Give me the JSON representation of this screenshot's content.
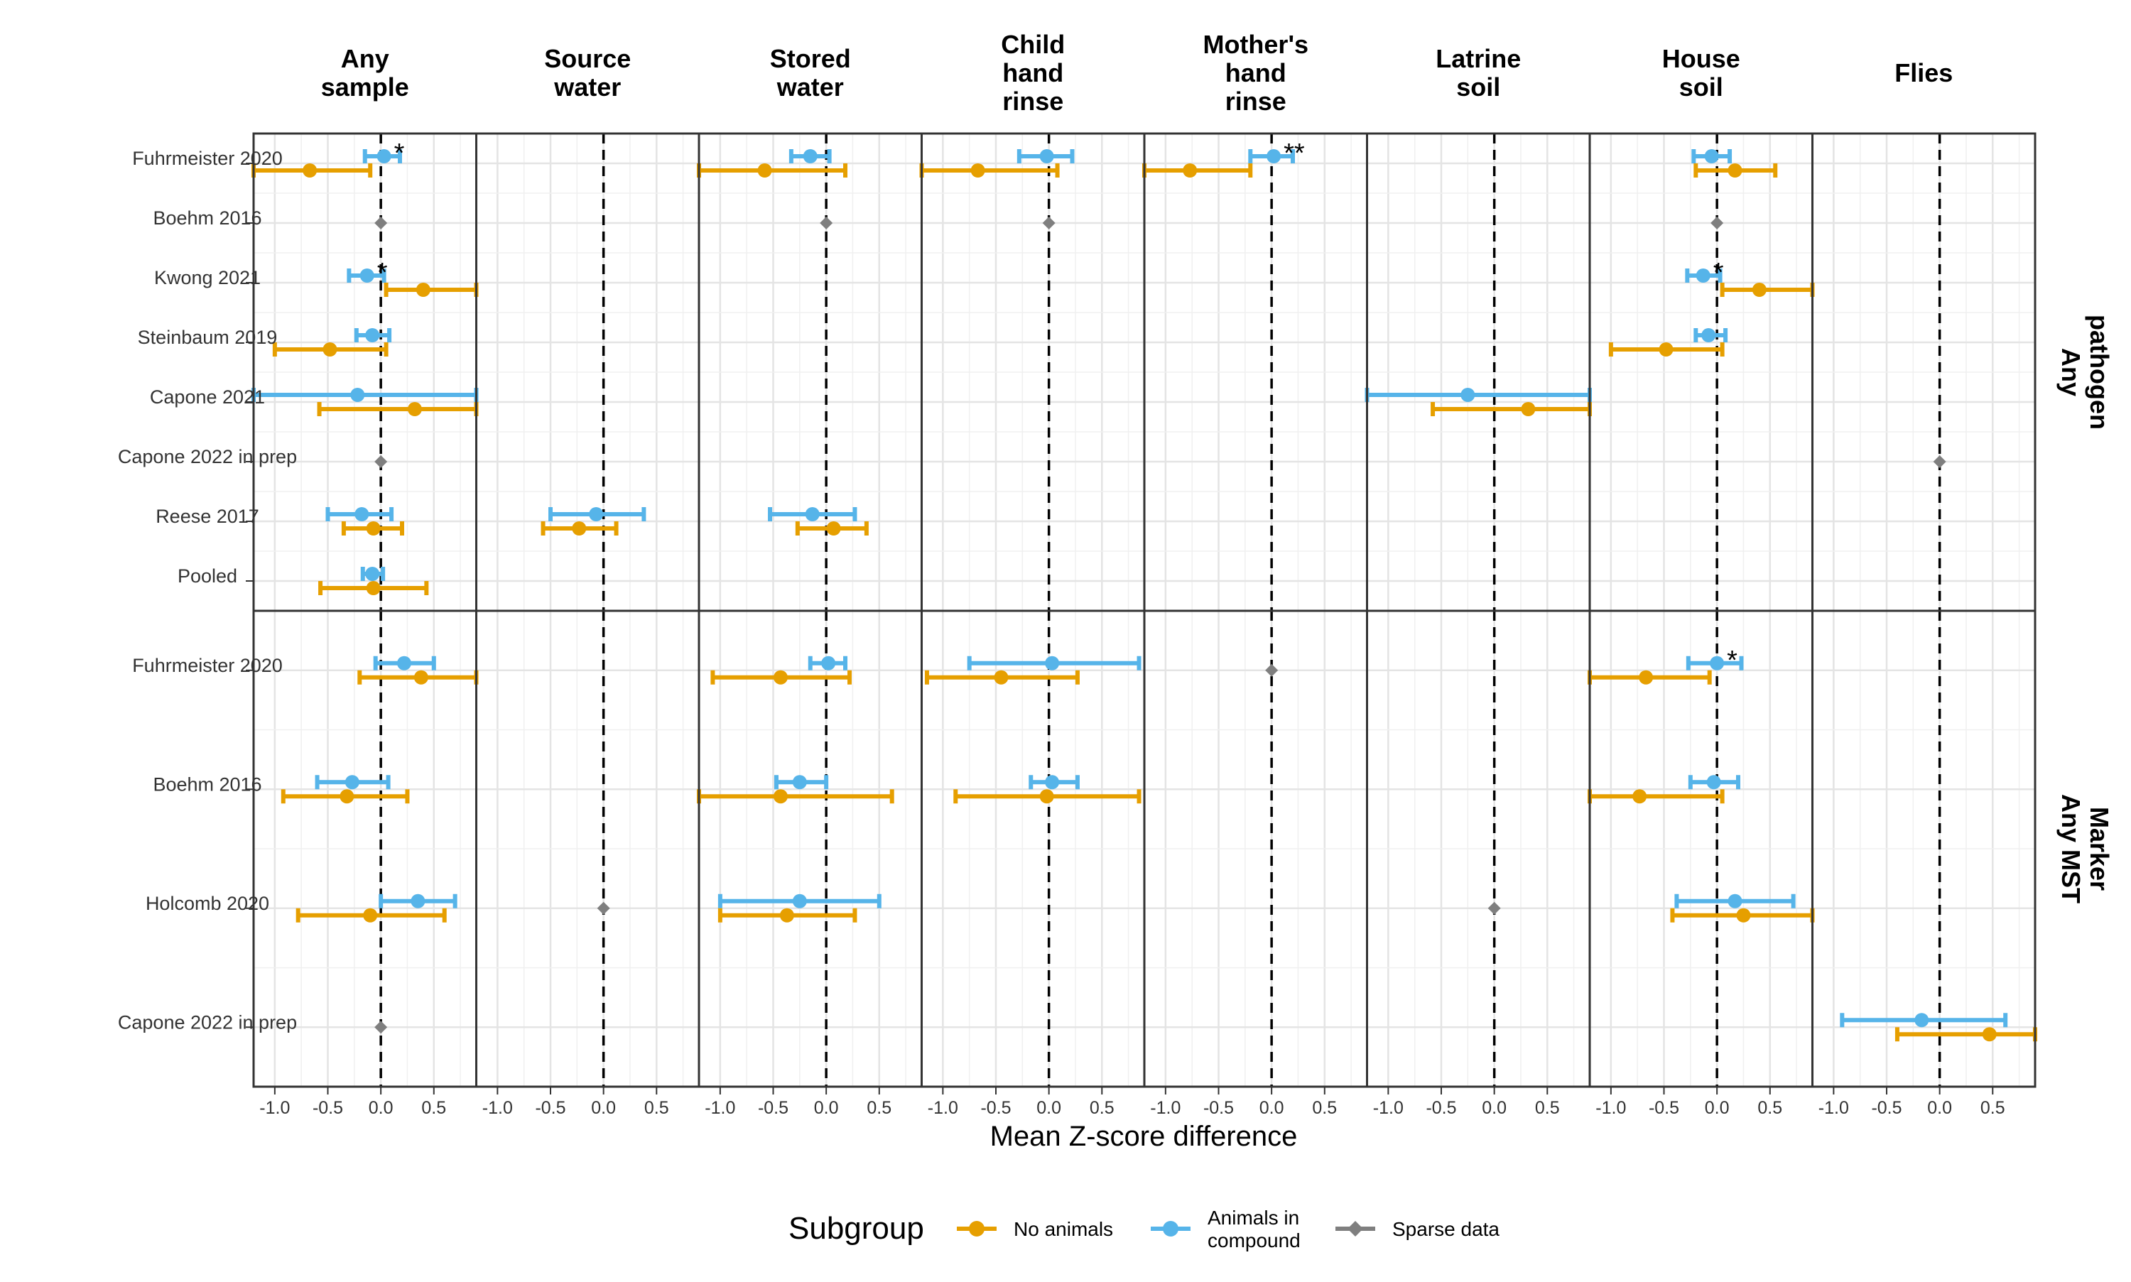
{
  "chart_data": {
    "type": "forest",
    "xlabel": "Mean Z-score difference",
    "xlim": [
      -1.2,
      0.9
    ],
    "xticks": [
      -1.0,
      -0.5,
      0.0,
      0.5
    ],
    "xtick_labels": [
      "-1.0",
      "-0.5",
      "0.0",
      "0.5"
    ],
    "columns": [
      "Any\nsample",
      "Source\nwater",
      "Stored\nwater",
      "Child\nhand\nrinse",
      "Mother's\nhand\nrinse",
      "Latrine\nsoil",
      "House\nsoil",
      "Flies"
    ],
    "row_panels": [
      {
        "label": "Any\npathogen",
        "studies": [
          "Fuhrmeister 2020",
          "Boehm 2016",
          "Kwong 2021",
          "Steinbaum 2019",
          "Capone 2021",
          "Capone 2022 in prep",
          "Reese 2017",
          "Pooled"
        ]
      },
      {
        "label": "Any MST\nMarker",
        "studies": [
          "Fuhrmeister 2020",
          "Boehm 2016",
          "Holcomb 2020",
          "Capone 2022 in prep"
        ]
      }
    ],
    "legend": {
      "title": "Subgroup",
      "placement": "bottom",
      "items": [
        {
          "key": "none",
          "label": "No animals",
          "color": "#E69F00"
        },
        {
          "key": "animals",
          "label": "Animals in\ncompound",
          "color": "#56B4E9"
        },
        {
          "key": "sparse",
          "label": "Sparse data",
          "color": "#7F7F7F"
        }
      ]
    },
    "points": [
      {
        "panel": 0,
        "col": 0,
        "study": 0,
        "group": "animals",
        "est": 0.03,
        "lo": -0.15,
        "hi": 0.18,
        "sig": "*"
      },
      {
        "panel": 0,
        "col": 0,
        "study": 0,
        "group": "none",
        "est": -0.67,
        "lo": -1.2,
        "hi": -0.1
      },
      {
        "panel": 0,
        "col": 0,
        "study": 1,
        "group": "sparse",
        "est": 0.0
      },
      {
        "panel": 0,
        "col": 0,
        "study": 2,
        "group": "animals",
        "est": -0.13,
        "lo": -0.3,
        "hi": 0.03,
        "sig": "*"
      },
      {
        "panel": 0,
        "col": 0,
        "study": 2,
        "group": "none",
        "est": 0.4,
        "lo": 0.05,
        "hi": 0.9
      },
      {
        "panel": 0,
        "col": 0,
        "study": 3,
        "group": "animals",
        "est": -0.08,
        "lo": -0.23,
        "hi": 0.08
      },
      {
        "panel": 0,
        "col": 0,
        "study": 3,
        "group": "none",
        "est": -0.48,
        "lo": -1.0,
        "hi": 0.05
      },
      {
        "panel": 0,
        "col": 0,
        "study": 4,
        "group": "animals",
        "est": -0.22,
        "lo": -1.2,
        "hi": 0.9
      },
      {
        "panel": 0,
        "col": 0,
        "study": 4,
        "group": "none",
        "est": 0.32,
        "lo": -0.58,
        "hi": 0.9
      },
      {
        "panel": 0,
        "col": 0,
        "study": 5,
        "group": "sparse",
        "est": 0.0
      },
      {
        "panel": 0,
        "col": 0,
        "study": 6,
        "group": "animals",
        "est": -0.18,
        "lo": -0.5,
        "hi": 0.1
      },
      {
        "panel": 0,
        "col": 0,
        "study": 6,
        "group": "none",
        "est": -0.07,
        "lo": -0.35,
        "hi": 0.2
      },
      {
        "panel": 0,
        "col": 0,
        "study": 7,
        "group": "animals",
        "est": -0.08,
        "lo": -0.17,
        "hi": 0.02
      },
      {
        "panel": 0,
        "col": 0,
        "study": 7,
        "group": "none",
        "est": -0.07,
        "lo": -0.57,
        "hi": 0.43
      },
      {
        "panel": 0,
        "col": 1,
        "study": 6,
        "group": "animals",
        "est": -0.07,
        "lo": -0.5,
        "hi": 0.38
      },
      {
        "panel": 0,
        "col": 1,
        "study": 6,
        "group": "none",
        "est": -0.23,
        "lo": -0.57,
        "hi": 0.12
      },
      {
        "panel": 0,
        "col": 2,
        "study": 0,
        "group": "animals",
        "est": -0.15,
        "lo": -0.33,
        "hi": 0.03
      },
      {
        "panel": 0,
        "col": 2,
        "study": 0,
        "group": "none",
        "est": -0.58,
        "lo": -1.2,
        "hi": 0.18
      },
      {
        "panel": 0,
        "col": 2,
        "study": 1,
        "group": "sparse",
        "est": 0.0
      },
      {
        "panel": 0,
        "col": 2,
        "study": 6,
        "group": "animals",
        "est": -0.13,
        "lo": -0.53,
        "hi": 0.27
      },
      {
        "panel": 0,
        "col": 2,
        "study": 6,
        "group": "none",
        "est": 0.07,
        "lo": -0.27,
        "hi": 0.38
      },
      {
        "panel": 0,
        "col": 3,
        "study": 0,
        "group": "animals",
        "est": -0.02,
        "lo": -0.28,
        "hi": 0.22
      },
      {
        "panel": 0,
        "col": 3,
        "study": 0,
        "group": "none",
        "est": -0.67,
        "lo": -1.2,
        "hi": 0.08
      },
      {
        "panel": 0,
        "col": 3,
        "study": 1,
        "group": "sparse",
        "est": 0.0
      },
      {
        "panel": 0,
        "col": 4,
        "study": 0,
        "group": "animals",
        "est": 0.02,
        "lo": -0.2,
        "hi": 0.2,
        "sig": "**"
      },
      {
        "panel": 0,
        "col": 4,
        "study": 0,
        "group": "none",
        "est": -0.77,
        "lo": -1.2,
        "hi": -0.2
      },
      {
        "panel": 0,
        "col": 5,
        "study": 4,
        "group": "animals",
        "est": -0.25,
        "lo": -1.2,
        "hi": 0.9
      },
      {
        "panel": 0,
        "col": 5,
        "study": 4,
        "group": "none",
        "est": 0.32,
        "lo": -0.58,
        "hi": 0.9
      },
      {
        "panel": 0,
        "col": 6,
        "study": 0,
        "group": "animals",
        "est": -0.05,
        "lo": -0.22,
        "hi": 0.12
      },
      {
        "panel": 0,
        "col": 6,
        "study": 0,
        "group": "none",
        "est": 0.17,
        "lo": -0.2,
        "hi": 0.55
      },
      {
        "panel": 0,
        "col": 6,
        "study": 1,
        "group": "sparse",
        "est": 0.0
      },
      {
        "panel": 0,
        "col": 6,
        "study": 2,
        "group": "animals",
        "est": -0.13,
        "lo": -0.28,
        "hi": 0.03,
        "sig": "*"
      },
      {
        "panel": 0,
        "col": 6,
        "study": 2,
        "group": "none",
        "est": 0.4,
        "lo": 0.05,
        "hi": 0.9
      },
      {
        "panel": 0,
        "col": 6,
        "study": 3,
        "group": "animals",
        "est": -0.08,
        "lo": -0.2,
        "hi": 0.08
      },
      {
        "panel": 0,
        "col": 6,
        "study": 3,
        "group": "none",
        "est": -0.48,
        "lo": -1.0,
        "hi": 0.05
      },
      {
        "panel": 0,
        "col": 7,
        "study": 5,
        "group": "sparse",
        "est": 0.0
      },
      {
        "panel": 1,
        "col": 0,
        "study": 0,
        "group": "animals",
        "est": 0.22,
        "lo": -0.05,
        "hi": 0.5
      },
      {
        "panel": 1,
        "col": 0,
        "study": 0,
        "group": "none",
        "est": 0.38,
        "lo": -0.2,
        "hi": 0.9
      },
      {
        "panel": 1,
        "col": 0,
        "study": 1,
        "group": "animals",
        "est": -0.27,
        "lo": -0.6,
        "hi": 0.07
      },
      {
        "panel": 1,
        "col": 0,
        "study": 1,
        "group": "none",
        "est": -0.32,
        "lo": -0.92,
        "hi": 0.25
      },
      {
        "panel": 1,
        "col": 0,
        "study": 2,
        "group": "animals",
        "est": 0.35,
        "lo": 0.0,
        "hi": 0.7
      },
      {
        "panel": 1,
        "col": 0,
        "study": 2,
        "group": "none",
        "est": -0.1,
        "lo": -0.78,
        "hi": 0.6
      },
      {
        "panel": 1,
        "col": 0,
        "study": 3,
        "group": "sparse",
        "est": 0.0
      },
      {
        "panel": 1,
        "col": 1,
        "study": 2,
        "group": "sparse",
        "est": 0.0
      },
      {
        "panel": 1,
        "col": 2,
        "study": 0,
        "group": "animals",
        "est": 0.02,
        "lo": -0.15,
        "hi": 0.18
      },
      {
        "panel": 1,
        "col": 2,
        "study": 0,
        "group": "none",
        "est": -0.43,
        "lo": -1.07,
        "hi": 0.22
      },
      {
        "panel": 1,
        "col": 2,
        "study": 1,
        "group": "animals",
        "est": -0.25,
        "lo": -0.47,
        "hi": 0.0
      },
      {
        "panel": 1,
        "col": 2,
        "study": 1,
        "group": "none",
        "est": -0.43,
        "lo": -1.2,
        "hi": 0.62
      },
      {
        "panel": 1,
        "col": 2,
        "study": 2,
        "group": "animals",
        "est": -0.25,
        "lo": -1.0,
        "hi": 0.5
      },
      {
        "panel": 1,
        "col": 2,
        "study": 2,
        "group": "none",
        "est": -0.37,
        "lo": -1.0,
        "hi": 0.27
      },
      {
        "panel": 1,
        "col": 3,
        "study": 0,
        "group": "animals",
        "est": 0.03,
        "lo": -0.75,
        "hi": 0.85
      },
      {
        "panel": 1,
        "col": 3,
        "study": 0,
        "group": "none",
        "est": -0.45,
        "lo": -1.15,
        "hi": 0.27
      },
      {
        "panel": 1,
        "col": 3,
        "study": 1,
        "group": "animals",
        "est": 0.03,
        "lo": -0.17,
        "hi": 0.27
      },
      {
        "panel": 1,
        "col": 3,
        "study": 1,
        "group": "none",
        "est": -0.02,
        "lo": -0.88,
        "hi": 0.85
      },
      {
        "panel": 1,
        "col": 4,
        "study": 0,
        "group": "sparse",
        "est": 0.0
      },
      {
        "panel": 1,
        "col": 5,
        "study": 2,
        "group": "sparse",
        "est": 0.0
      },
      {
        "panel": 1,
        "col": 6,
        "study": 0,
        "group": "animals",
        "est": 0.0,
        "lo": -0.27,
        "hi": 0.23,
        "sig": "*"
      },
      {
        "panel": 1,
        "col": 6,
        "study": 0,
        "group": "none",
        "est": -0.67,
        "lo": -1.2,
        "hi": -0.07
      },
      {
        "panel": 1,
        "col": 6,
        "study": 1,
        "group": "animals",
        "est": -0.03,
        "lo": -0.25,
        "hi": 0.2
      },
      {
        "panel": 1,
        "col": 6,
        "study": 1,
        "group": "none",
        "est": -0.73,
        "lo": -1.2,
        "hi": 0.05
      },
      {
        "panel": 1,
        "col": 6,
        "study": 2,
        "group": "animals",
        "est": 0.17,
        "lo": -0.38,
        "hi": 0.72
      },
      {
        "panel": 1,
        "col": 6,
        "study": 2,
        "group": "none",
        "est": 0.25,
        "lo": -0.42,
        "hi": 0.9
      },
      {
        "panel": 1,
        "col": 7,
        "study": 3,
        "group": "animals",
        "est": -0.17,
        "lo": -0.92,
        "hi": 0.62
      },
      {
        "panel": 1,
        "col": 7,
        "study": 3,
        "group": "none",
        "est": 0.47,
        "lo": -0.4,
        "hi": 0.9
      }
    ]
  }
}
